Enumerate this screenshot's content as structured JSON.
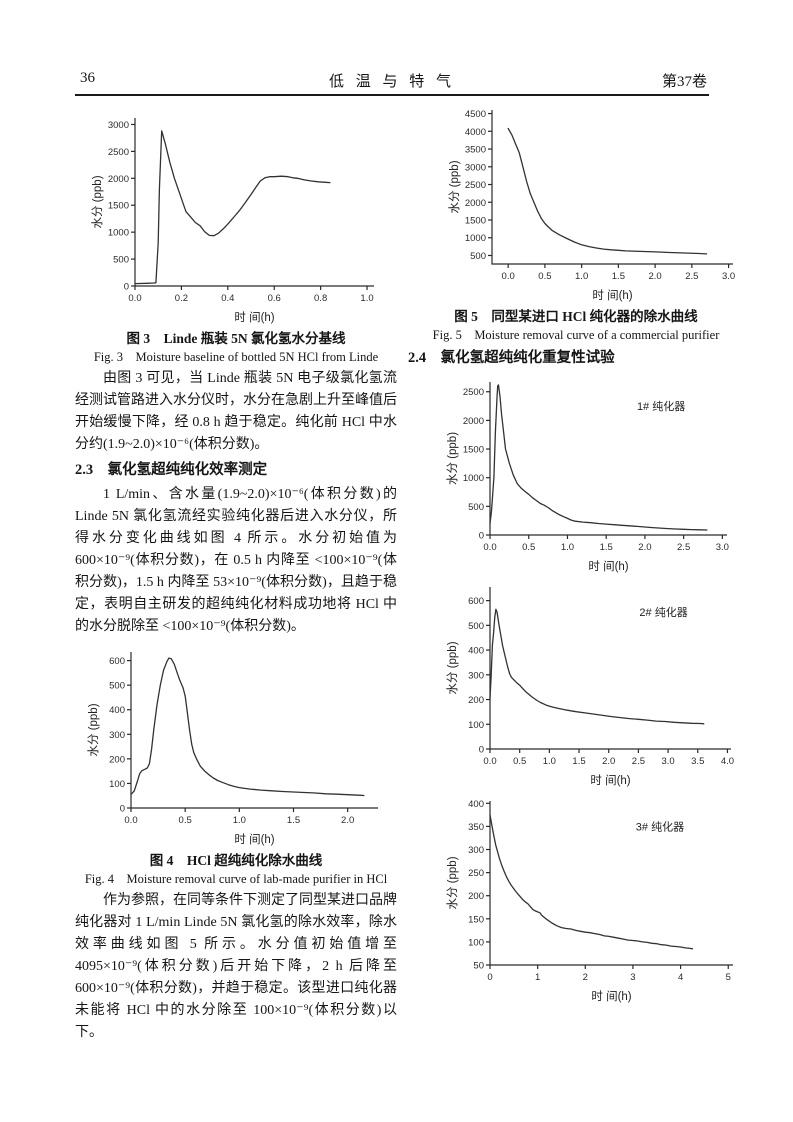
{
  "header": {
    "page_number": "36",
    "journal_title": "低 温 与 特 气",
    "volume": "第37卷"
  },
  "left": {
    "fig3_caption_cn": "图 3　Linde 瓶装 5N 氯化氢水分基线",
    "fig3_caption_en": "Fig. 3　Moisture baseline of bottled 5N HCl from Linde",
    "para1": "由图 3 可见，当 Linde 瓶装 5N 电子级氯化氢流经测试管路进入水分仪时，水分在急剧上升至峰值后开始缓慢下降，经 0.8 h 趋于稳定。纯化前 HCl 中水分约(1.9~2.0)×10⁻⁶(体积分数)。",
    "sec23": "2.3　氯化氢超纯纯化效率测定",
    "para2": "1 L/min、含水量(1.9~2.0)×10⁻⁶(体积分数)的 Linde 5N 氯化氢流经实验纯化器后进入水分仪，所得水分变化曲线如图 4 所示。水分初始值为 600×10⁻⁹(体积分数)，在 0.5 h 内降至 <100×10⁻⁹(体积分数)，1.5 h 内降至 53×10⁻⁹(体积分数)，且趋于稳定，表明自主研发的超纯纯化材料成功地将 HCl 中的水分脱除至 <100×10⁻⁹(体积分数)。",
    "fig4_caption_cn": "图 4　HCl 超纯纯化除水曲线",
    "fig4_caption_en": "Fig. 4　Moisture removal curve of lab-made purifier in HCl",
    "para3": "作为参照，在同等条件下测定了同型某进口品牌纯化器对 1 L/min Linde 5N 氯化氢的除水效率，除水效率曲线如图 5 所示。水分值初始值增至 4095×10⁻⁹(体积分数)后开始下降，2 h 后降至 600×10⁻⁹(体积分数)，并趋于稳定。该型进口纯化器未能将 HCl 中的水分除至 100×10⁻⁹(体积分数)以下。"
  },
  "right": {
    "fig5_caption_cn": "图 5　同型某进口 HCl 纯化器的除水曲线",
    "fig5_caption_en": "Fig. 5　Moisture removal curve of a commercial purifier",
    "sec24": "2.4　氯化氢超纯纯化重复性试验"
  },
  "chart_data": [
    {
      "name": "fig3",
      "type": "line",
      "title": "图3 Linde瓶装5N氯化氢水分基线",
      "xlabel": "时 间(h)",
      "ylabel": "水分 (ppb)",
      "xticks": [
        "0.0",
        "0.2",
        "0.4",
        "0.6",
        "0.8",
        "1.0"
      ],
      "yticks": [
        "0",
        "500",
        "1000",
        "1500",
        "2000",
        "2500",
        "3000"
      ],
      "xlim_draw": [
        0,
        1.03
      ],
      "ylim_draw": [
        0,
        3120
      ],
      "annotation": "",
      "annotation_pos": [
        0,
        0
      ],
      "points": [
        [
          0,
          45
        ],
        [
          0.05,
          50
        ],
        [
          0.08,
          55
        ],
        [
          0.09,
          60
        ],
        [
          0.1,
          800
        ],
        [
          0.105,
          1800
        ],
        [
          0.115,
          2880
        ],
        [
          0.13,
          2650
        ],
        [
          0.15,
          2300
        ],
        [
          0.17,
          2000
        ],
        [
          0.19,
          1750
        ],
        [
          0.21,
          1500
        ],
        [
          0.22,
          1380
        ],
        [
          0.24,
          1280
        ],
        [
          0.26,
          1180
        ],
        [
          0.28,
          1120
        ],
        [
          0.3,
          1010
        ],
        [
          0.32,
          940
        ],
        [
          0.34,
          935
        ],
        [
          0.36,
          980
        ],
        [
          0.38,
          1060
        ],
        [
          0.4,
          1150
        ],
        [
          0.43,
          1300
        ],
        [
          0.45,
          1400
        ],
        [
          0.47,
          1520
        ],
        [
          0.5,
          1700
        ],
        [
          0.52,
          1830
        ],
        [
          0.54,
          1950
        ],
        [
          0.56,
          2010
        ],
        [
          0.58,
          2030
        ],
        [
          0.6,
          2030
        ],
        [
          0.63,
          2040
        ],
        [
          0.66,
          2030
        ],
        [
          0.68,
          2010
        ],
        [
          0.7,
          2000
        ],
        [
          0.73,
          1970
        ],
        [
          0.76,
          1950
        ],
        [
          0.79,
          1935
        ],
        [
          0.82,
          1925
        ],
        [
          0.84,
          1920
        ]
      ]
    },
    {
      "name": "fig4",
      "type": "line",
      "title": "图4 HCl超纯纯化除水曲线",
      "xlabel": "时 间(h)",
      "ylabel": "水分 (ppb)",
      "xticks": [
        "0.0",
        "0.5",
        "1.0",
        "1.5",
        "2.0"
      ],
      "yticks": [
        "0",
        "100",
        "200",
        "300",
        "400",
        "500",
        "600"
      ],
      "xlim_draw": [
        0,
        2.28
      ],
      "ylim_draw": [
        0,
        635
      ],
      "annotation": "",
      "annotation_pos": [
        0,
        0
      ],
      "points": [
        [
          0,
          55
        ],
        [
          0.03,
          70
        ],
        [
          0.06,
          110
        ],
        [
          0.08,
          140
        ],
        [
          0.1,
          152
        ],
        [
          0.13,
          158
        ],
        [
          0.15,
          163
        ],
        [
          0.17,
          180
        ],
        [
          0.19,
          240
        ],
        [
          0.21,
          320
        ],
        [
          0.24,
          420
        ],
        [
          0.27,
          500
        ],
        [
          0.3,
          560
        ],
        [
          0.33,
          595
        ],
        [
          0.35,
          610
        ],
        [
          0.37,
          608
        ],
        [
          0.4,
          585
        ],
        [
          0.43,
          545
        ],
        [
          0.45,
          520
        ],
        [
          0.48,
          490
        ],
        [
          0.5,
          455
        ],
        [
          0.52,
          390
        ],
        [
          0.54,
          320
        ],
        [
          0.56,
          260
        ],
        [
          0.58,
          225
        ],
        [
          0.61,
          195
        ],
        [
          0.64,
          170
        ],
        [
          0.68,
          150
        ],
        [
          0.72,
          135
        ],
        [
          0.76,
          122
        ],
        [
          0.8,
          112
        ],
        [
          0.85,
          103
        ],
        [
          0.9,
          95
        ],
        [
          0.95,
          88
        ],
        [
          1.0,
          83
        ],
        [
          1.1,
          77
        ],
        [
          1.2,
          73
        ],
        [
          1.3,
          70
        ],
        [
          1.4,
          67
        ],
        [
          1.5,
          65
        ],
        [
          1.6,
          63
        ],
        [
          1.7,
          61
        ],
        [
          1.8,
          58
        ],
        [
          1.9,
          56
        ],
        [
          2.0,
          54
        ],
        [
          2.1,
          52
        ],
        [
          2.15,
          51
        ]
      ]
    },
    {
      "name": "fig5",
      "type": "line",
      "title": "图5 同型某进口HCl纯化器的除水曲线",
      "xlabel": "时 间(h)",
      "ylabel": "水分 (ppb)",
      "xticks": [
        "0.0",
        "0.5",
        "1.0",
        "1.5",
        "2.0",
        "2.5",
        "3.0"
      ],
      "yticks": [
        "500",
        "1000",
        "1500",
        "2000",
        "2500",
        "3000",
        "3500",
        "4000",
        "4500"
      ],
      "xlim_draw": [
        -0.22,
        3.06
      ],
      "ylim_draw": [
        260,
        4600
      ],
      "annotation": "",
      "annotation_pos": [
        0,
        0
      ],
      "points": [
        [
          0.0,
          4080
        ],
        [
          0.05,
          3900
        ],
        [
          0.1,
          3650
        ],
        [
          0.15,
          3400
        ],
        [
          0.2,
          3000
        ],
        [
          0.25,
          2600
        ],
        [
          0.3,
          2250
        ],
        [
          0.35,
          2000
        ],
        [
          0.4,
          1750
        ],
        [
          0.45,
          1550
        ],
        [
          0.5,
          1400
        ],
        [
          0.55,
          1300
        ],
        [
          0.6,
          1200
        ],
        [
          0.7,
          1080
        ],
        [
          0.8,
          980
        ],
        [
          0.9,
          880
        ],
        [
          1.0,
          800
        ],
        [
          1.1,
          750
        ],
        [
          1.2,
          710
        ],
        [
          1.3,
          680
        ],
        [
          1.4,
          660
        ],
        [
          1.5,
          645
        ],
        [
          1.6,
          630
        ],
        [
          1.8,
          615
        ],
        [
          2.0,
          600
        ],
        [
          2.2,
          585
        ],
        [
          2.4,
          570
        ],
        [
          2.6,
          555
        ],
        [
          2.7,
          545
        ]
      ]
    },
    {
      "name": "purifier-1",
      "type": "line",
      "title": "1# 纯化器除水曲线",
      "xlabel": "时 间(h)",
      "ylabel": "水分 (ppb)",
      "xticks": [
        "0.0",
        "0.5",
        "1.0",
        "1.5",
        "2.0",
        "2.5",
        "3.0"
      ],
      "yticks": [
        "0",
        "500",
        "1000",
        "1500",
        "2000",
        "2500"
      ],
      "xlim_draw": [
        0,
        3.06
      ],
      "ylim_draw": [
        0,
        2670
      ],
      "annotation": "1# 纯化器",
      "annotation_pos": [
        0.62,
        0.13
      ],
      "points": [
        [
          0,
          200
        ],
        [
          0.02,
          420
        ],
        [
          0.05,
          1000
        ],
        [
          0.07,
          1800
        ],
        [
          0.09,
          2400
        ],
        [
          0.1,
          2600
        ],
        [
          0.11,
          2620
        ],
        [
          0.13,
          2400
        ],
        [
          0.15,
          2100
        ],
        [
          0.18,
          1750
        ],
        [
          0.2,
          1500
        ],
        [
          0.25,
          1250
        ],
        [
          0.3,
          1050
        ],
        [
          0.35,
          900
        ],
        [
          0.4,
          820
        ],
        [
          0.45,
          760
        ],
        [
          0.5,
          710
        ],
        [
          0.55,
          650
        ],
        [
          0.6,
          600
        ],
        [
          0.65,
          550
        ],
        [
          0.7,
          520
        ],
        [
          0.75,
          480
        ],
        [
          0.8,
          430
        ],
        [
          0.85,
          390
        ],
        [
          0.9,
          350
        ],
        [
          0.95,
          320
        ],
        [
          1.0,
          290
        ],
        [
          1.05,
          260
        ],
        [
          1.1,
          240
        ],
        [
          1.2,
          225
        ],
        [
          1.3,
          215
        ],
        [
          1.4,
          200
        ],
        [
          1.5,
          190
        ],
        [
          1.6,
          180
        ],
        [
          1.7,
          170
        ],
        [
          1.8,
          160
        ],
        [
          1.9,
          150
        ],
        [
          2.0,
          140
        ],
        [
          2.1,
          130
        ],
        [
          2.2,
          120
        ],
        [
          2.3,
          112
        ],
        [
          2.4,
          105
        ],
        [
          2.5,
          100
        ],
        [
          2.6,
          95
        ],
        [
          2.7,
          90
        ],
        [
          2.8,
          88
        ]
      ]
    },
    {
      "name": "purifier-2",
      "type": "line",
      "title": "2# 纯化器除水曲线",
      "xlabel": "时 间(h)",
      "ylabel": "水分 (ppb)",
      "xticks": [
        "0.0",
        "0.5",
        "1.0",
        "1.5",
        "2.0",
        "2.5",
        "3.0",
        "3.5",
        "4.0"
      ],
      "yticks": [
        "0",
        "100",
        "200",
        "300",
        "400",
        "500",
        "600"
      ],
      "xlim_draw": [
        0,
        4.06
      ],
      "ylim_draw": [
        0,
        655
      ],
      "annotation": "2# 纯化器",
      "annotation_pos": [
        0.62,
        0.13
      ],
      "points": [
        [
          0,
          205
        ],
        [
          0.02,
          300
        ],
        [
          0.04,
          420
        ],
        [
          0.06,
          470
        ],
        [
          0.08,
          530
        ],
        [
          0.1,
          565
        ],
        [
          0.12,
          552
        ],
        [
          0.15,
          505
        ],
        [
          0.18,
          462
        ],
        [
          0.21,
          420
        ],
        [
          0.24,
          390
        ],
        [
          0.27,
          360
        ],
        [
          0.3,
          330
        ],
        [
          0.33,
          305
        ],
        [
          0.36,
          290
        ],
        [
          0.4,
          280
        ],
        [
          0.45,
          268
        ],
        [
          0.5,
          258
        ],
        [
          0.55,
          245
        ],
        [
          0.6,
          232
        ],
        [
          0.65,
          222
        ],
        [
          0.7,
          212
        ],
        [
          0.78,
          198
        ],
        [
          0.85,
          188
        ],
        [
          0.95,
          177
        ],
        [
          1.05,
          170
        ],
        [
          1.15,
          164
        ],
        [
          1.3,
          157
        ],
        [
          1.45,
          151
        ],
        [
          1.6,
          146
        ],
        [
          1.75,
          141
        ],
        [
          1.9,
          136
        ],
        [
          2.05,
          131
        ],
        [
          2.2,
          127
        ],
        [
          2.35,
          123
        ],
        [
          2.5,
          120
        ],
        [
          2.65,
          117
        ],
        [
          2.8,
          113
        ],
        [
          2.95,
          111
        ],
        [
          3.1,
          108
        ],
        [
          3.25,
          106
        ],
        [
          3.4,
          104
        ],
        [
          3.55,
          103
        ],
        [
          3.6,
          102
        ]
      ]
    },
    {
      "name": "purifier-3",
      "type": "line",
      "title": "3# 纯化器除水曲线",
      "xlabel": "时 间(h)",
      "ylabel": "水分 (ppb)",
      "xticks": [
        "0",
        "1",
        "2",
        "3",
        "4",
        "5"
      ],
      "yticks": [
        "50",
        "100",
        "150",
        "200",
        "250",
        "300",
        "350",
        "400"
      ],
      "xlim_draw": [
        0,
        5.1
      ],
      "ylim_draw": [
        50,
        405
      ],
      "annotation": "3# 纯化器",
      "annotation_pos": [
        0.6,
        0.13
      ],
      "points": [
        [
          0,
          375
        ],
        [
          0.04,
          352
        ],
        [
          0.08,
          330
        ],
        [
          0.12,
          310
        ],
        [
          0.16,
          295
        ],
        [
          0.2,
          280
        ],
        [
          0.25,
          265
        ],
        [
          0.3,
          252
        ],
        [
          0.35,
          240
        ],
        [
          0.4,
          230
        ],
        [
          0.45,
          222
        ],
        [
          0.5,
          215
        ],
        [
          0.55,
          208
        ],
        [
          0.6,
          202
        ],
        [
          0.65,
          196
        ],
        [
          0.7,
          190
        ],
        [
          0.75,
          186
        ],
        [
          0.8,
          182
        ],
        [
          0.85,
          176
        ],
        [
          0.9,
          170
        ],
        [
          0.95,
          167
        ],
        [
          1.0,
          165
        ],
        [
          1.05,
          163
        ],
        [
          1.08,
          158
        ],
        [
          1.15,
          152
        ],
        [
          1.2,
          148
        ],
        [
          1.3,
          141
        ],
        [
          1.4,
          135
        ],
        [
          1.5,
          131
        ],
        [
          1.6,
          129
        ],
        [
          1.7,
          128
        ],
        [
          1.8,
          125
        ],
        [
          1.9,
          123
        ],
        [
          2.0,
          121
        ],
        [
          2.1,
          120
        ],
        [
          2.2,
          118
        ],
        [
          2.3,
          116
        ],
        [
          2.4,
          113
        ],
        [
          2.5,
          112
        ],
        [
          2.6,
          110
        ],
        [
          2.7,
          108
        ],
        [
          2.8,
          106
        ],
        [
          2.9,
          104
        ],
        [
          3.0,
          103
        ],
        [
          3.1,
          102
        ],
        [
          3.2,
          100
        ],
        [
          3.3,
          99
        ],
        [
          3.4,
          97
        ],
        [
          3.5,
          96
        ],
        [
          3.6,
          94
        ],
        [
          3.7,
          93
        ],
        [
          3.8,
          91
        ],
        [
          3.9,
          90
        ],
        [
          4.0,
          89
        ],
        [
          4.1,
          87
        ],
        [
          4.2,
          86
        ],
        [
          4.25,
          85
        ]
      ]
    }
  ]
}
